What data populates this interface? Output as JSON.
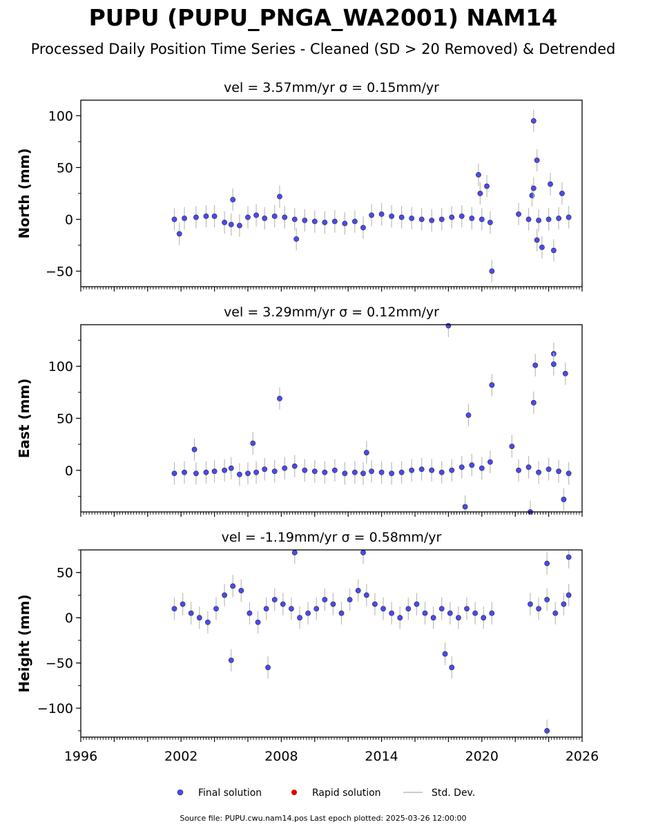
{
  "figure": {
    "title": "PUPU (PUPU_PNGA_WA2001) NAM14",
    "subtitle": "Processed Daily Position Time Series - Cleaned (SD > 20 Removed) & Detrended",
    "source_note": "Source file: PUPU.cwu.nam14.pos  Last epoch plotted: 2025-03-26 12:00:00"
  },
  "legend": {
    "final": "Final solution",
    "rapid": "Rapid solution",
    "stddev": "Std. Dev."
  },
  "colors": {
    "final": "#4a4af4",
    "rapid": "#e00000",
    "stddev": "#bbbbbb"
  },
  "chart_data": [
    {
      "type": "scatter",
      "title": "vel = 3.57mm/yr   σ = 0.15mm/yr",
      "ylabel": "North (mm)",
      "xlim": [
        1996,
        2026
      ],
      "ylim": [
        -65,
        115
      ],
      "yticks": [
        -50,
        0,
        50,
        100
      ],
      "ytick_labels": [
        "−50",
        "0",
        "50",
        "100"
      ],
      "series": [
        {
          "name": "Final solution",
          "x": [
            2001.6,
            2002.2,
            2002.9,
            2003.5,
            2004.0,
            2004.6,
            2005.0,
            2005.5,
            2006.0,
            2006.5,
            2007.0,
            2007.6,
            2008.2,
            2008.8,
            2009.4,
            2010.0,
            2010.6,
            2011.2,
            2011.8,
            2012.4,
            2012.9,
            2013.4,
            2014.0,
            2014.6,
            2015.2,
            2015.8,
            2016.4,
            2017.0,
            2017.6,
            2018.2,
            2018.8,
            2019.4,
            2020.0,
            2020.5,
            2022.2,
            2022.8,
            2023.4,
            2024.0,
            2024.6,
            2025.2,
            2001.9,
            2007.9,
            2008.9,
            2005.1,
            2019.8,
            2019.9,
            2020.3,
            2020.6,
            2023.0,
            2023.1,
            2023.3,
            2023.6,
            2024.1,
            2024.3,
            2024.8,
            2023.1,
            2023.3
          ],
          "y": [
            0,
            1,
            2,
            3,
            3,
            -3,
            -5,
            -6,
            2,
            4,
            1,
            3,
            2,
            0,
            -1,
            -2,
            -3,
            -2,
            -4,
            -2,
            -8,
            4,
            5,
            3,
            2,
            1,
            0,
            -1,
            0,
            2,
            3,
            1,
            0,
            -3,
            5,
            0,
            -1,
            0,
            1,
            2,
            -14,
            22,
            -19,
            19,
            43,
            25,
            32,
            -50,
            23,
            30,
            57,
            -27,
            34,
            -30,
            25,
            95,
            -20
          ]
        }
      ]
    },
    {
      "type": "scatter",
      "title": "vel = 3.29mm/yr   σ = 0.12mm/yr",
      "ylabel": "East (mm)",
      "xlim": [
        1996,
        2026
      ],
      "ylim": [
        -40,
        140
      ],
      "yticks": [
        0,
        50,
        100
      ],
      "ytick_labels": [
        "0",
        "50",
        "100"
      ],
      "series": [
        {
          "name": "Final solution",
          "x": [
            2001.6,
            2002.2,
            2002.9,
            2003.5,
            2004.0,
            2004.6,
            2005.0,
            2005.5,
            2006.0,
            2006.5,
            2007.0,
            2007.6,
            2008.2,
            2008.8,
            2009.4,
            2010.0,
            2010.6,
            2011.2,
            2011.8,
            2012.4,
            2012.9,
            2013.4,
            2014.0,
            2014.6,
            2015.2,
            2015.8,
            2016.4,
            2017.0,
            2017.6,
            2018.2,
            2018.8,
            2019.4,
            2020.0,
            2020.5,
            2022.2,
            2022.8,
            2023.4,
            2024.0,
            2024.6,
            2025.2,
            2002.8,
            2006.3,
            2007.9,
            2013.1,
            2018.0,
            2020.6,
            2023.2,
            2023.1,
            2024.3,
            2024.3,
            2025.0,
            2019.2,
            2019.0,
            2022.9,
            2024.9,
            2021.8
          ],
          "y": [
            -3,
            -2,
            -3,
            -2,
            -1,
            0,
            2,
            -4,
            -3,
            -2,
            1,
            -1,
            2,
            4,
            0,
            -1,
            -2,
            0,
            -3,
            -2,
            -3,
            -1,
            -2,
            -3,
            -2,
            0,
            1,
            0,
            -2,
            0,
            3,
            5,
            2,
            8,
            0,
            3,
            -2,
            1,
            -1,
            -3,
            20,
            26,
            69,
            17,
            139,
            82,
            101,
            65,
            112,
            102,
            93,
            53,
            -35,
            -40,
            -28,
            23
          ]
        }
      ]
    },
    {
      "type": "scatter",
      "title": "vel = -1.19mm/yr   σ = 0.58mm/yr",
      "ylabel": "Height (mm)",
      "xlabel": "",
      "xlim": [
        1996,
        2026
      ],
      "ylim": [
        -132,
        75
      ],
      "xticks": [
        1996,
        2002,
        2008,
        2014,
        2020,
        2026
      ],
      "xtick_labels": [
        "1996",
        "2002",
        "2008",
        "2014",
        "2020",
        "2026"
      ],
      "yticks": [
        -100,
        -50,
        0,
        50
      ],
      "ytick_labels": [
        "−100",
        "−50",
        "0",
        "50"
      ],
      "series": [
        {
          "name": "Final solution",
          "x": [
            2001.6,
            2002.1,
            2002.6,
            2003.1,
            2003.6,
            2004.1,
            2004.6,
            2005.1,
            2005.6,
            2006.1,
            2006.6,
            2007.1,
            2007.6,
            2008.1,
            2008.6,
            2009.1,
            2009.6,
            2010.1,
            2010.6,
            2011.1,
            2011.6,
            2012.1,
            2012.6,
            2013.1,
            2013.6,
            2014.1,
            2014.6,
            2015.1,
            2015.6,
            2016.1,
            2016.6,
            2017.1,
            2017.6,
            2018.1,
            2018.6,
            2019.1,
            2019.6,
            2020.1,
            2020.6,
            2022.9,
            2023.4,
            2023.9,
            2024.4,
            2024.9,
            2025.2,
            2005.0,
            2007.2,
            2008.8,
            2012.9,
            2017.8,
            2023.9,
            2023.9,
            2025.2,
            2018.2
          ],
          "y": [
            10,
            15,
            5,
            0,
            -5,
            10,
            25,
            35,
            30,
            5,
            -5,
            10,
            20,
            15,
            10,
            0,
            5,
            10,
            20,
            15,
            5,
            20,
            30,
            25,
            15,
            10,
            5,
            0,
            10,
            15,
            5,
            0,
            10,
            5,
            0,
            10,
            5,
            0,
            5,
            15,
            10,
            20,
            5,
            15,
            25,
            -47,
            -55,
            72,
            72,
            -40,
            -125,
            60,
            67,
            -55
          ]
        }
      ]
    }
  ]
}
